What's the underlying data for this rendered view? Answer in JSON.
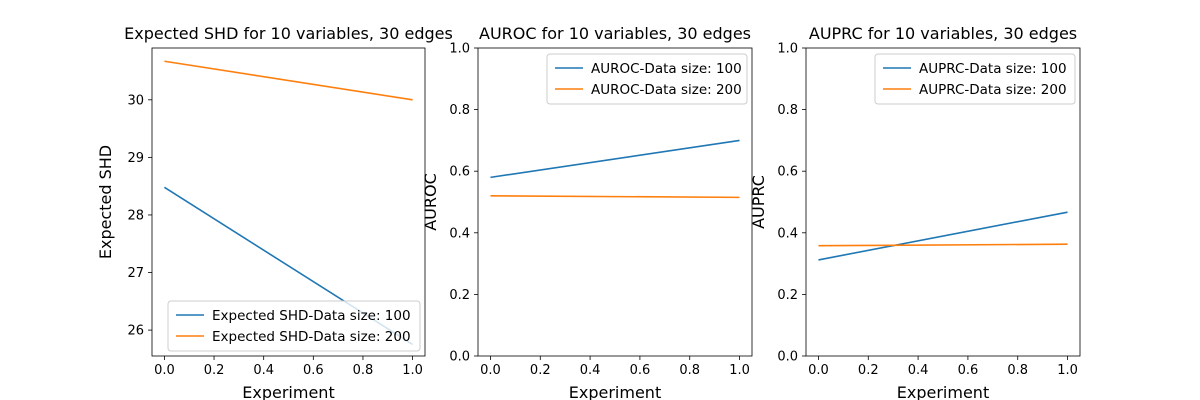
{
  "chart_data": [
    {
      "type": "line",
      "title": "Expected SHD for 10 variables, 30 edges",
      "xlabel": "Experiment",
      "ylabel": "Expected SHD",
      "xlim": [
        -0.05,
        1.05
      ],
      "ylim": [
        25.55,
        30.9
      ],
      "xticks": [
        0.0,
        0.2,
        0.4,
        0.6,
        0.8,
        1.0
      ],
      "xtick_labels": [
        "0.0",
        "0.2",
        "0.4",
        "0.6",
        "0.8",
        "1.0"
      ],
      "yticks": [
        26,
        27,
        28,
        29,
        30
      ],
      "ytick_labels": [
        "26",
        "27",
        "28",
        "29",
        "30"
      ],
      "x": [
        0,
        1
      ],
      "series": [
        {
          "name": "Expected SHD-Data size: 100",
          "color": "#1f77b4",
          "values": [
            28.48,
            25.75
          ]
        },
        {
          "name": "Expected SHD-Data size: 200",
          "color": "#ff7f0e",
          "values": [
            30.67,
            30.0
          ]
        }
      ],
      "legend": "lower-right",
      "grid": false
    },
    {
      "type": "line",
      "title": "AUROC for 10 variables, 30 edges",
      "xlabel": "Experiment",
      "ylabel": "AUROC",
      "xlim": [
        -0.05,
        1.05
      ],
      "ylim": [
        0.0,
        1.0
      ],
      "xticks": [
        0.0,
        0.2,
        0.4,
        0.6,
        0.8,
        1.0
      ],
      "xtick_labels": [
        "0.0",
        "0.2",
        "0.4",
        "0.6",
        "0.8",
        "1.0"
      ],
      "yticks": [
        0.0,
        0.2,
        0.4,
        0.6,
        0.8,
        1.0
      ],
      "ytick_labels": [
        "0.0",
        "0.2",
        "0.4",
        "0.6",
        "0.8",
        "1.0"
      ],
      "x": [
        0,
        1
      ],
      "series": [
        {
          "name": "AUROC-Data size: 100",
          "color": "#1f77b4",
          "values": [
            0.58,
            0.7
          ]
        },
        {
          "name": "AUROC-Data size: 200",
          "color": "#ff7f0e",
          "values": [
            0.52,
            0.515
          ]
        }
      ],
      "legend": "upper-right",
      "grid": false
    },
    {
      "type": "line",
      "title": "AUPRC for 10 variables, 30 edges",
      "xlabel": "Experiment",
      "ylabel": "AUPRC",
      "xlim": [
        -0.05,
        1.05
      ],
      "ylim": [
        0.0,
        1.0
      ],
      "xticks": [
        0.0,
        0.2,
        0.4,
        0.6,
        0.8,
        1.0
      ],
      "xtick_labels": [
        "0.0",
        "0.2",
        "0.4",
        "0.6",
        "0.8",
        "1.0"
      ],
      "yticks": [
        0.0,
        0.2,
        0.4,
        0.6,
        0.8,
        1.0
      ],
      "ytick_labels": [
        "0.0",
        "0.2",
        "0.4",
        "0.6",
        "0.8",
        "1.0"
      ],
      "x": [
        0,
        1
      ],
      "series": [
        {
          "name": "AUPRC-Data size: 100",
          "color": "#1f77b4",
          "values": [
            0.312,
            0.467
          ]
        },
        {
          "name": "AUPRC-Data size: 200",
          "color": "#ff7f0e",
          "values": [
            0.358,
            0.363
          ]
        }
      ],
      "legend": "upper-right",
      "grid": false
    }
  ]
}
